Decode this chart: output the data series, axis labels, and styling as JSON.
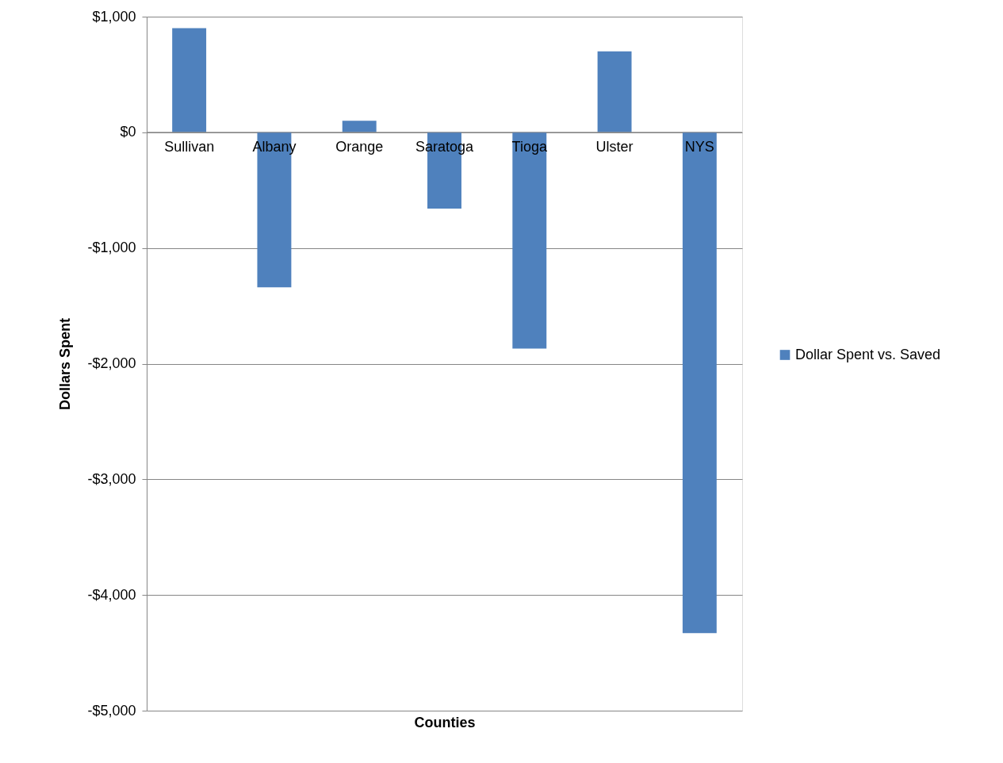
{
  "chart_data": {
    "type": "bar",
    "xlabel": "Counties",
    "ylabel": "Dollars Spent",
    "categories": [
      "Sullivan",
      "Albany",
      "Orange",
      "Saratoga",
      "Tioga",
      "Ulster",
      "NYS"
    ],
    "series": [
      {
        "name": "Dollar Spent vs. Saved",
        "color": "#4f81bd",
        "values": [
          900,
          -1340,
          100,
          -660,
          -1870,
          700,
          -4330
        ]
      }
    ],
    "ylim": [
      -5000,
      1000
    ],
    "yticks": [
      {
        "value": -5000,
        "label": "-$5,000"
      },
      {
        "value": -4000,
        "label": "-$4,000"
      },
      {
        "value": -3000,
        "label": "-$3,000"
      },
      {
        "value": -2000,
        "label": "-$2,000"
      },
      {
        "value": -1000,
        "label": "-$1,000"
      },
      {
        "value": 0,
        "label": "$0"
      },
      {
        "value": 1000,
        "label": "$1,000"
      }
    ],
    "grid": "y",
    "legend": "right"
  }
}
